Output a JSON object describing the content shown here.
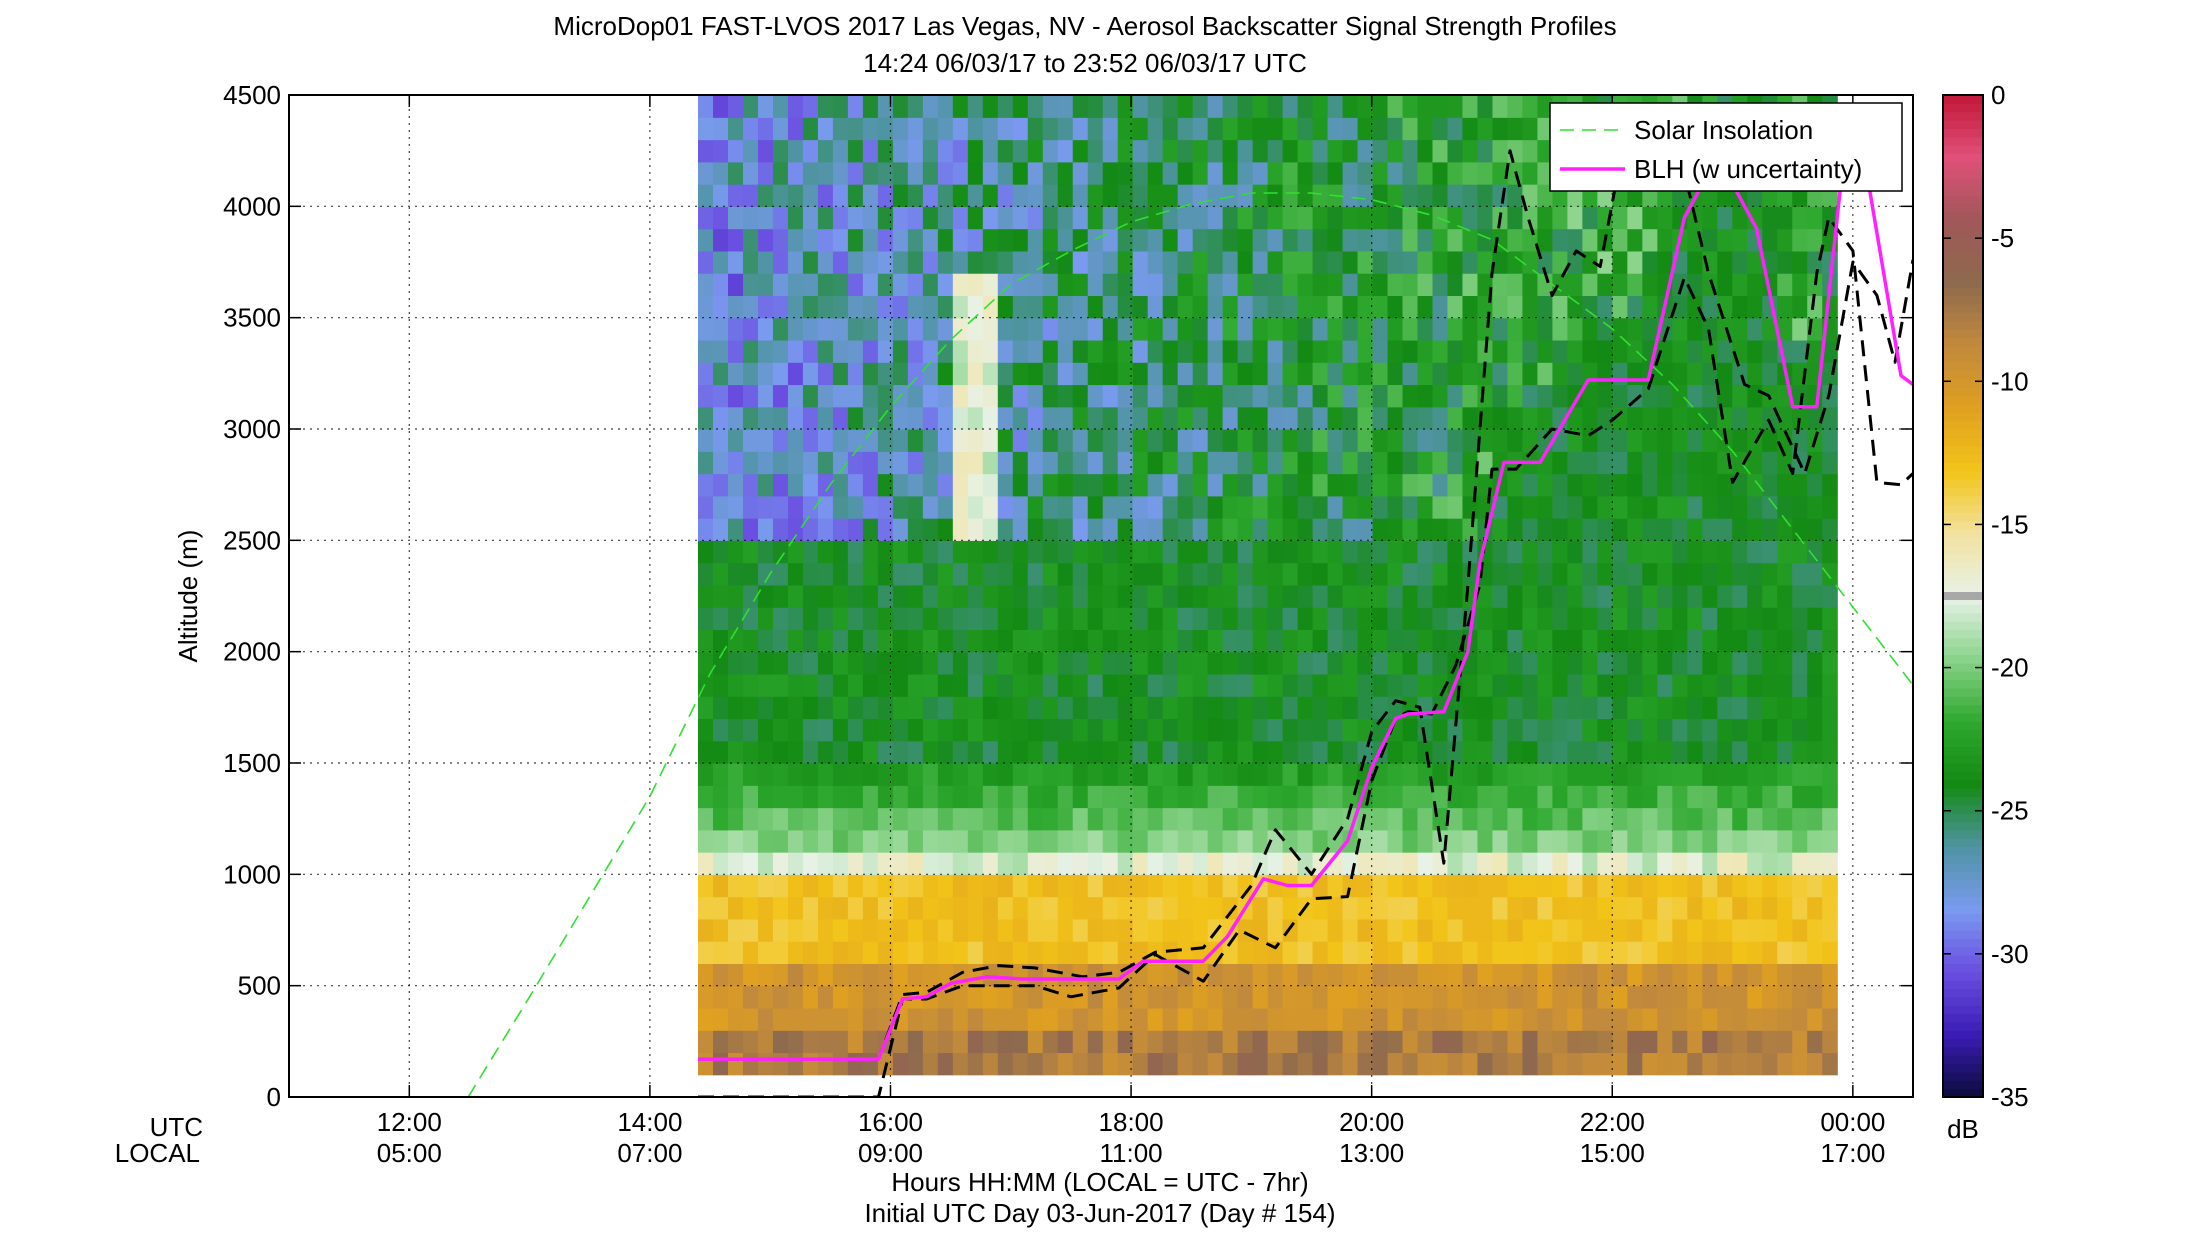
{
  "chart_data": {
    "type": "heatmap",
    "title": "MicroDop01 FAST-LVOS 2017 Las Vegas, NV - Aerosol Backscatter Signal Strength Profiles",
    "subtitle": "14:24 06/03/17 to 23:52 06/03/17  UTC",
    "ylabel": "Altitude (m)",
    "xlabel": "Hours HH:MM  (LOCAL = UTC - 7hr)",
    "xlabel2": "Initial UTC Day 03-Jun-2017 (Day # 154)",
    "x_row_labels": [
      "UTC",
      "LOCAL"
    ],
    "x_range_hours": [
      11.0,
      24.5
    ],
    "ylim": [
      0,
      4500
    ],
    "x_ticks": [
      {
        "hour": 12,
        "utc": "12:00",
        "local": "05:00"
      },
      {
        "hour": 14,
        "utc": "14:00",
        "local": "07:00"
      },
      {
        "hour": 16,
        "utc": "16:00",
        "local": "09:00"
      },
      {
        "hour": 18,
        "utc": "18:00",
        "local": "11:00"
      },
      {
        "hour": 20,
        "utc": "20:00",
        "local": "13:00"
      },
      {
        "hour": 22,
        "utc": "22:00",
        "local": "15:00"
      },
      {
        "hour": 24,
        "utc": "00:00",
        "local": "17:00"
      }
    ],
    "y_ticks": [
      "0",
      "500",
      "1000",
      "1500",
      "2000",
      "2500",
      "3000",
      "3500",
      "4000",
      "4500"
    ],
    "grid": true,
    "colorbar": {
      "unit": "dB",
      "range": [
        -35,
        0
      ],
      "ticks": [
        "0",
        "-5",
        "-10",
        "-15",
        "-20",
        "-25",
        "-30",
        "-35"
      ],
      "tick_values": [
        0,
        -5,
        -10,
        -15,
        -20,
        -25,
        -30,
        -35
      ],
      "colors": [
        "#0b0b3a",
        "#3a1cb4",
        "#6a4ee0",
        "#7a9af0",
        "#4f94a2",
        "#138a13",
        "#2ea82e",
        "#8ad38a",
        "#e8f2e8",
        "#f2e2a0",
        "#f2c418",
        "#e0a020",
        "#c28a3c",
        "#8e6a4e",
        "#a05858",
        "#e0507a",
        "#c21838"
      ]
    },
    "heatmap_extent": {
      "x_hours": [
        14.4,
        23.87
      ],
      "y_m": [
        100,
        4500
      ]
    },
    "legend": {
      "placement": "top-right",
      "entries": [
        "Solar Insolation",
        "BLH (w uncertainty)"
      ]
    },
    "series": [
      {
        "name": "BLH (w uncertainty)",
        "color": "#ff22ff",
        "x": [
          14.4,
          15.9,
          16.1,
          16.3,
          16.5,
          16.8,
          17.1,
          17.5,
          17.9,
          18.1,
          18.6,
          18.8,
          19.1,
          19.3,
          19.5,
          19.8,
          20.0,
          20.2,
          20.3,
          20.6,
          20.8,
          20.9,
          21.1,
          21.4,
          21.8,
          22.1,
          22.3,
          22.6,
          22.8,
          23.0,
          23.2,
          23.5,
          23.7,
          23.9,
          24.1,
          24.4,
          24.5
        ],
        "y": [
          170,
          170,
          440,
          450,
          510,
          540,
          530,
          530,
          530,
          610,
          610,
          720,
          980,
          950,
          950,
          1150,
          1480,
          1700,
          1720,
          1730,
          2000,
          2400,
          2850,
          2850,
          3220,
          3220,
          3220,
          3950,
          4150,
          4100,
          3900,
          3100,
          3100,
          4100,
          4200,
          3240,
          3200
        ]
      },
      {
        "name": "BLH upper bound",
        "color": "#000000",
        "x": [
          14.4,
          15.9,
          16.1,
          16.3,
          16.6,
          16.9,
          17.2,
          17.6,
          17.9,
          18.2,
          18.6,
          19.0,
          19.2,
          19.5,
          19.8,
          20.0,
          20.2,
          20.4,
          20.6,
          20.8,
          21.0,
          21.15,
          21.3,
          21.5,
          21.7,
          21.9,
          22.1,
          22.3,
          22.6,
          22.8,
          23.1,
          23.3,
          23.6,
          23.8,
          24.0,
          24.2,
          24.35,
          24.5
        ],
        "y": [
          170,
          170,
          460,
          470,
          560,
          590,
          580,
          540,
          560,
          650,
          670,
          950,
          1200,
          1000,
          1250,
          1640,
          1780,
          1750,
          1050,
          2300,
          3700,
          4250,
          3950,
          3600,
          3800,
          3730,
          4300,
          4150,
          4150,
          3700,
          3200,
          3150,
          2800,
          3150,
          3750,
          3600,
          3300,
          3760
        ]
      },
      {
        "name": "BLH lower bound",
        "color": "#000000",
        "x": [
          14.4,
          15.9,
          16.1,
          16.3,
          16.6,
          16.9,
          17.2,
          17.5,
          17.9,
          18.2,
          18.6,
          18.9,
          19.2,
          19.5,
          19.8,
          20.0,
          20.2,
          20.3,
          20.5,
          20.7,
          20.9,
          21.0,
          21.2,
          21.5,
          21.8,
          22.0,
          22.3,
          22.6,
          22.8,
          23.0,
          23.3,
          23.5,
          23.7,
          23.8,
          24.0,
          24.2,
          24.4,
          24.5
        ],
        "y": [
          0,
          0,
          440,
          440,
          500,
          500,
          500,
          450,
          490,
          640,
          520,
          750,
          670,
          890,
          900,
          1420,
          1700,
          1730,
          1720,
          1940,
          2300,
          2820,
          2820,
          3000,
          2970,
          3040,
          3180,
          3680,
          3450,
          2760,
          3040,
          2800,
          3700,
          3950,
          3800,
          2760,
          2750,
          2800
        ]
      },
      {
        "name": "Solar Insolation",
        "color": "#30e030",
        "x": [
          12.49,
          13.0,
          13.5,
          14.0,
          14.5,
          15.0,
          15.5,
          16.0,
          16.5,
          17.0,
          17.5,
          18.0,
          18.5,
          19.0,
          19.5,
          20.0,
          20.5,
          21.0,
          21.5,
          22.0,
          22.5,
          23.0,
          23.5,
          24.0,
          24.5
        ],
        "y": [
          0,
          450,
          900,
          1350,
          1900,
          2350,
          2750,
          3100,
          3400,
          3650,
          3800,
          3930,
          4010,
          4060,
          4060,
          4030,
          3960,
          3850,
          3650,
          3450,
          3200,
          2900,
          2550,
          2200,
          1850
        ]
      }
    ]
  }
}
